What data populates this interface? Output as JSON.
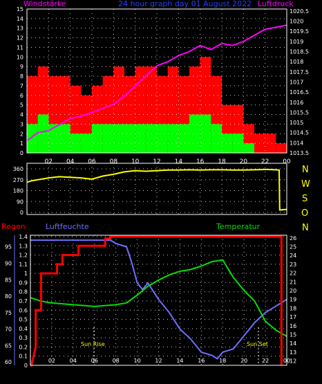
{
  "header": {
    "left_label": "Windstärke",
    "title": "24 hour graph day  01 August 2022",
    "right_label": "Luftdruck"
  },
  "lower_header": {
    "rain_label": "Regen",
    "humidity_label": "Luftfeuchte",
    "temperature_label": "Temperatur"
  },
  "direction_labels": [
    "N",
    "W",
    "S",
    "O",
    "N"
  ],
  "annotations": [
    "Sun Rise",
    "Sun Set"
  ],
  "colors": {
    "background": "#000000",
    "frame": "#ffffff",
    "grid": "#ffffff",
    "gust": "#ff0000",
    "wind": "#00ff00",
    "pressure": "#ff00ff",
    "direction": "#ffff00",
    "rain": "#ff0000",
    "humidity": "#7070ff",
    "temperature": "#00e000",
    "header_left": "#ff00ff",
    "header_title": "#2040ff",
    "axis_labels": "#ffffff"
  },
  "chart_data": [
    {
      "type": "bar",
      "xlim": [
        0,
        24
      ],
      "x_ticks": [
        "02",
        "04",
        "06",
        "08",
        "10",
        "12",
        "14",
        "16",
        "18",
        "20",
        "22",
        "00"
      ],
      "y_left_ticks": [
        "0",
        "1",
        "2",
        "3",
        "4",
        "5",
        "6",
        "7",
        "8",
        "9",
        "10",
        "11",
        "12",
        "13",
        "14",
        "15"
      ],
      "y_left_range": [
        0,
        15
      ],
      "y_right_ticks": [
        "1013.5",
        "1014",
        "1014.5",
        "1015",
        "1015.5",
        "1016",
        "1016.5",
        "1017",
        "1017.5",
        "1018",
        "1018.5",
        "1019",
        "1019.5",
        "1020",
        "1020.5"
      ],
      "y_right_range": [
        1013.5,
        1020.6
      ],
      "series": [
        {
          "axis": "left",
          "x": [
            0,
            1,
            2,
            3,
            4,
            5,
            6,
            7,
            8,
            9,
            10,
            11,
            12,
            13,
            14,
            15,
            16,
            17,
            18,
            19,
            20,
            21,
            22,
            23
          ],
          "values": [
            8,
            9,
            8,
            8,
            7,
            6,
            7,
            8,
            9,
            8,
            9,
            9,
            8,
            9,
            8,
            9,
            10,
            8,
            5,
            5,
            3,
            2,
            2,
            1
          ]
        },
        {
          "axis": "left",
          "x": [
            0,
            1,
            2,
            3,
            4,
            5,
            6,
            7,
            8,
            9,
            10,
            11,
            12,
            13,
            14,
            15,
            16,
            17,
            18,
            19,
            20,
            21,
            22,
            23
          ],
          "values": [
            3,
            4,
            3,
            3,
            2,
            2,
            3,
            3,
            3,
            3,
            3,
            3,
            3,
            3,
            3,
            4,
            4,
            3,
            2,
            2,
            1,
            0,
            0,
            0
          ]
        },
        {
          "axis": "right",
          "x": [
            0,
            1,
            2,
            3,
            4,
            5,
            6,
            7,
            8,
            9,
            10,
            11,
            12,
            13,
            14,
            15,
            16,
            17,
            18,
            19,
            20,
            21,
            22,
            23,
            24
          ],
          "values": [
            1014.1,
            1014.5,
            1014.6,
            1014.9,
            1015.2,
            1015.3,
            1015.5,
            1015.7,
            1015.9,
            1016.3,
            1016.8,
            1017.3,
            1017.8,
            1018.0,
            1018.3,
            1018.5,
            1018.8,
            1018.6,
            1018.9,
            1018.8,
            1019.0,
            1019.3,
            1019.6,
            1019.7,
            1019.8
          ]
        }
      ]
    },
    {
      "type": "line",
      "xlim": [
        0,
        24
      ],
      "y_ticks": [
        "0",
        "90",
        "180",
        "270",
        "360"
      ],
      "ylim": [
        0,
        360
      ],
      "series": [
        {
          "x": [
            0,
            0.5,
            1,
            2,
            3,
            4,
            5,
            6,
            7,
            8,
            9,
            10,
            11,
            12,
            13,
            14,
            15,
            16,
            17,
            18,
            19,
            20,
            21,
            22,
            23,
            23.3,
            23.35,
            24
          ],
          "values": [
            250,
            262,
            270,
            285,
            295,
            290,
            285,
            275,
            300,
            315,
            335,
            345,
            340,
            345,
            350,
            350,
            352,
            350,
            352,
            352,
            350,
            350,
            352,
            355,
            352,
            350,
            20,
            25
          ]
        }
      ]
    },
    {
      "type": "line",
      "xlim": [
        0,
        24
      ],
      "x_ticks": [
        "02",
        "04",
        "06",
        "08",
        "10",
        "12",
        "14",
        "16",
        "18",
        "20",
        "22",
        "00"
      ],
      "y_rain_ticks": [
        "0",
        "0.1",
        "0.2",
        "0.3",
        "0.4",
        "0.5",
        "0.6",
        "0.7",
        "0.8",
        "0.9",
        "1",
        "1.1",
        "1.2",
        "1.3",
        "1.4"
      ],
      "rain_range": [
        0,
        1.4
      ],
      "y_humidity_ticks": [
        "60",
        "65",
        "70",
        "75",
        "80",
        "85",
        "90",
        "95"
      ],
      "humidity_range": [
        59,
        98.5
      ],
      "y_temperature_ticks": [
        "12",
        "13",
        "14",
        "15",
        "16",
        "17",
        "18",
        "19",
        "20",
        "21",
        "22",
        "23",
        "24",
        "25",
        "26"
      ],
      "temperature_range": [
        11.5,
        26.3
      ],
      "series": [
        {
          "x": [
            0,
            0.1,
            0.5,
            0.5,
            1,
            1,
            2.5,
            2.5,
            3,
            3,
            4.5,
            4.5,
            7,
            7,
            7.5,
            7.5,
            23.5,
            23.5
          ],
          "values": [
            0,
            0,
            0.2,
            0.6,
            0.6,
            1.0,
            1.0,
            1.1,
            1.1,
            1.2,
            1.2,
            1.3,
            1.3,
            1.38,
            1.38,
            1.4,
            1.4,
            0
          ]
        },
        {
          "x": [
            0,
            1,
            2,
            3,
            4,
            5,
            6,
            7,
            7.5,
            8,
            9,
            9.5,
            10,
            10.5,
            11,
            12,
            13,
            14,
            15,
            16,
            17,
            17.5,
            18,
            19,
            20,
            21,
            22,
            23,
            24
          ],
          "values": [
            97,
            97,
            97,
            97,
            97,
            97,
            97,
            97,
            97,
            96,
            95,
            90,
            84,
            82,
            84,
            79,
            75,
            70,
            67,
            63,
            62,
            61,
            63,
            64,
            68,
            72,
            75,
            77,
            79
          ]
        },
        {
          "x": [
            0,
            1,
            2,
            3,
            4,
            5,
            6,
            7,
            8,
            9,
            10,
            11,
            12,
            13,
            14,
            15,
            16,
            17,
            18,
            19,
            20,
            21,
            22,
            23,
            24
          ],
          "values": [
            19.2,
            18.8,
            18.6,
            18.5,
            18.4,
            18.3,
            18.2,
            18.3,
            18.4,
            18.6,
            19.5,
            20.5,
            21.2,
            21.8,
            22.2,
            22.4,
            22.8,
            23.3,
            23.5,
            21.5,
            20.0,
            18.8,
            16.5,
            15.5,
            14.8
          ]
        }
      ]
    }
  ]
}
